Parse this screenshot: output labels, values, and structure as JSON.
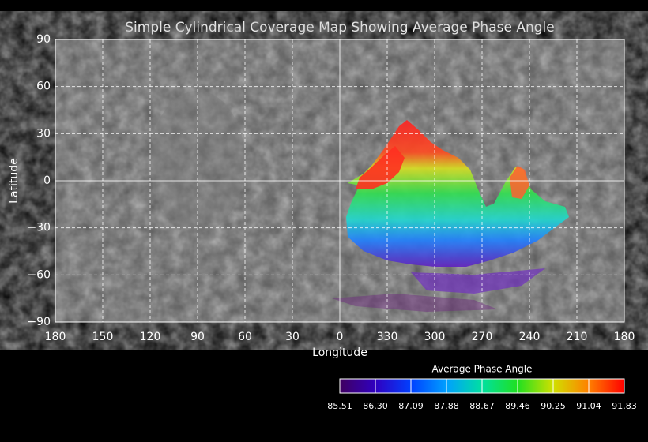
{
  "title": "Simple Cylindrical Coverage Map Showing Average Phase Angle",
  "x_axis": {
    "label": "Longitude",
    "ticks": [
      "180",
      "150",
      "120",
      "90",
      "60",
      "30",
      "0",
      "330",
      "300",
      "270",
      "240",
      "210",
      "180"
    ]
  },
  "y_axis": {
    "label": "Latitude",
    "ticks": [
      "90",
      "60",
      "30",
      "0",
      "−30",
      "−60",
      "−90"
    ]
  },
  "colorbar": {
    "title": "Average Phase Angle",
    "ticks": [
      "85.51",
      "86.30",
      "87.09",
      "87.88",
      "88.67",
      "89.46",
      "90.25",
      "91.04",
      "91.83"
    ]
  }
}
